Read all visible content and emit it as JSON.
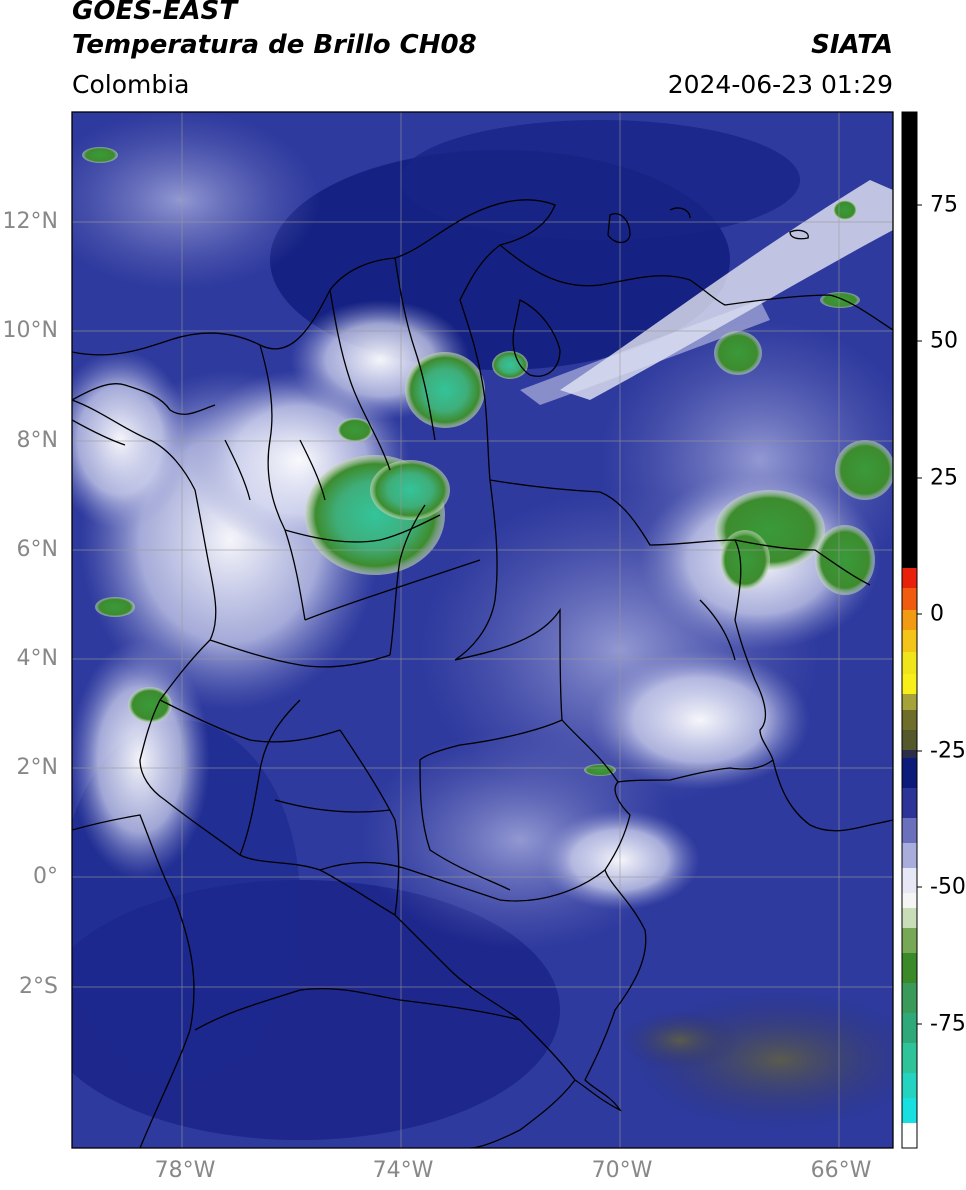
{
  "header": {
    "satellite": "GOES-EAST",
    "product": "Temperatura de Brillo CH08",
    "region": "Colombia",
    "brand": "SIATA",
    "timestamp": "2024-06-23 01:29"
  },
  "map": {
    "lat_labels": [
      "12°N",
      "10°N",
      "8°N",
      "6°N",
      "4°N",
      "2°N",
      "0°",
      "2°S"
    ],
    "lon_labels": [
      "78°W",
      "74°W",
      "70°W",
      "66°W"
    ],
    "lat_range": [
      -4.8,
      14.2
    ],
    "lon_range": [
      -80.0,
      -65.0
    ],
    "gridlines": true
  },
  "colorbar": {
    "ticks": [
      "75",
      "50",
      "25",
      "0",
      "-25",
      "-50",
      "-75"
    ],
    "range": [
      -100,
      90
    ],
    "colors": {
      "hot": "#000000",
      "red": "#e8220a",
      "orange": "#f29a12",
      "yellow": "#f7ee1a",
      "dark_olive": "#55582a",
      "navy": "#0c1a7a",
      "lavender": "#a9addc",
      "white": "#f5f5f5",
      "green": "#3a8a2a",
      "teal": "#2fc39a",
      "cyan": "#19e0e0"
    }
  }
}
